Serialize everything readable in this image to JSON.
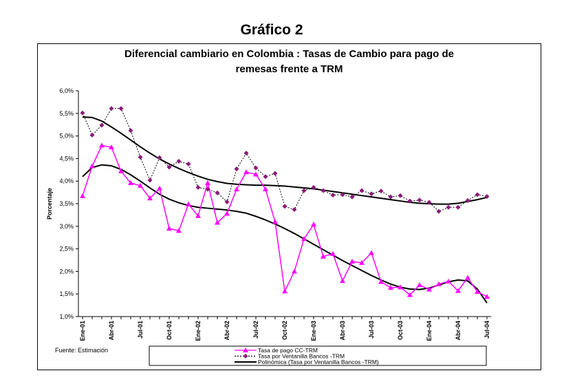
{
  "page_title": "Gráfico 2",
  "source_note": "Fuente: Estimación",
  "chart_data": {
    "type": "line",
    "title_lines": [
      "Diferencial cambiario en Colombia : Tasas de Cambio para pago de",
      "remesas frente a TRM"
    ],
    "xlabel": "",
    "ylabel": "Porcentaje",
    "ylim": [
      1.0,
      6.0
    ],
    "yticks": [
      1.0,
      1.5,
      2.0,
      2.5,
      3.0,
      3.5,
      4.0,
      4.5,
      5.0,
      5.5,
      6.0
    ],
    "ytick_labels": [
      "1,0%",
      "1,5%",
      "2,0%",
      "2,5%",
      "3,0%",
      "3,5%",
      "4,0%",
      "4,5%",
      "5,0%",
      "5,5%",
      "6,0%"
    ],
    "xtick_labels": [
      "Ene-01",
      "Abr-01",
      "Jul-01",
      "Oct-01",
      "Ene-02",
      "Abr-02",
      "Jul-02",
      "Oct-02",
      "Ene-03",
      "Abr-03",
      "Jul-03",
      "Oct-03",
      "Ene-04",
      "Abr-04",
      "Jul-04"
    ],
    "xtick_every": 3,
    "x_period_count": 43,
    "grid": false,
    "legend_position": "bottom",
    "series": [
      {
        "name": "Tasa de pago CC-TRM",
        "color": "#ff00ff",
        "marker": "triangle",
        "line_style": "solid",
        "values": [
          3.67,
          4.33,
          4.79,
          4.75,
          4.22,
          3.96,
          3.9,
          3.62,
          3.84,
          2.95,
          2.9,
          3.49,
          3.23,
          3.96,
          3.08,
          3.28,
          3.82,
          4.2,
          4.15,
          3.82,
          3.1,
          1.56,
          2.0,
          2.72,
          3.04,
          2.33,
          2.39,
          1.79,
          2.22,
          2.19,
          2.41,
          1.77,
          1.64,
          1.65,
          1.48,
          1.7,
          1.6,
          1.72,
          1.78,
          1.57,
          1.86,
          1.55,
          1.44
        ]
      },
      {
        "name": "Tasa por Ventanilla Bancos -TRM",
        "color": "#000000",
        "marker_color": "#8b1a7a",
        "marker": "diamond",
        "line_style": "dotted",
        "values": [
          5.51,
          5.02,
          5.24,
          5.61,
          5.61,
          5.12,
          4.53,
          4.02,
          4.52,
          4.31,
          4.44,
          4.38,
          3.86,
          3.82,
          3.74,
          3.54,
          4.27,
          4.62,
          4.29,
          4.1,
          4.17,
          3.44,
          3.37,
          3.79,
          3.86,
          3.79,
          3.69,
          3.7,
          3.65,
          3.79,
          3.72,
          3.78,
          3.65,
          3.68,
          3.56,
          3.58,
          3.53,
          3.33,
          3.42,
          3.42,
          3.57,
          3.7,
          3.66
        ]
      },
      {
        "name": "Polinómica (Tasa por Ventanilla Bancos -TRM)",
        "color": "#000000",
        "marker": "none",
        "line_style": "solid",
        "trendline": true,
        "values": [
          5.42,
          5.41,
          5.33,
          5.2,
          5.06,
          4.91,
          4.76,
          4.62,
          4.49,
          4.38,
          4.28,
          4.19,
          4.11,
          4.04,
          3.99,
          3.95,
          3.93,
          3.92,
          3.91,
          3.91,
          3.9,
          3.89,
          3.87,
          3.85,
          3.83,
          3.8,
          3.77,
          3.74,
          3.71,
          3.68,
          3.65,
          3.62,
          3.59,
          3.56,
          3.53,
          3.51,
          3.5,
          3.49,
          3.49,
          3.51,
          3.55,
          3.59,
          3.64
        ]
      },
      {
        "name": "",
        "color": "#000000",
        "marker": "none",
        "line_style": "solid",
        "trendline": true,
        "values": [
          4.1,
          4.3,
          4.36,
          4.34,
          4.26,
          4.14,
          4.0,
          3.85,
          3.71,
          3.6,
          3.52,
          3.46,
          3.42,
          3.4,
          3.38,
          3.36,
          3.33,
          3.29,
          3.22,
          3.14,
          3.05,
          2.95,
          2.84,
          2.72,
          2.6,
          2.48,
          2.36,
          2.24,
          2.13,
          2.02,
          1.91,
          1.81,
          1.72,
          1.65,
          1.61,
          1.6,
          1.63,
          1.7,
          1.77,
          1.81,
          1.79,
          1.61,
          1.3
        ]
      }
    ]
  }
}
